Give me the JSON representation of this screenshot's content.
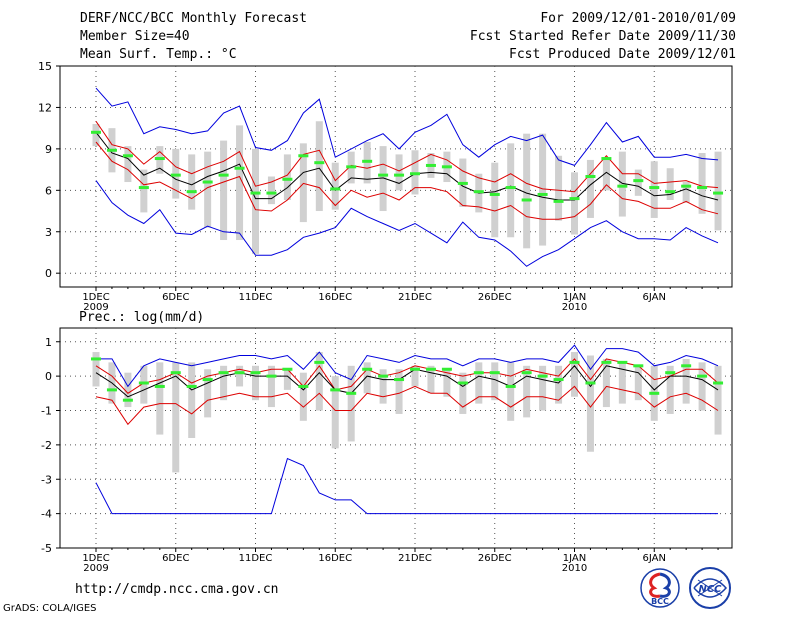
{
  "header": {
    "line1_left": "DERF/NCC/BCC Monthly Forecast",
    "line2_left": "Member Size=40",
    "line3_left": "Mean Surf. Temp.: °C",
    "line1_right": "For 2009/12/01-2010/01/09",
    "line2_right": "Fcst Started Refer Date 2009/11/30",
    "line3_right": "Fcst Produced Date 2009/12/01"
  },
  "footer": {
    "url": "http://cmdp.ncc.cma.gov.cn",
    "grads": "GrADS: COLA/IGES",
    "logo_bcc_text": "BCC",
    "logo_ncc_text": "NCC"
  },
  "colors": {
    "envelope": "#0000dd",
    "spread": "#dd0000",
    "mean": "#000000",
    "median": "#33ee33",
    "box": "#d0d0d0"
  },
  "chart_data": [
    {
      "type": "box-line",
      "title": "Mean Surf. Temp.: °C",
      "x_tick_labels": [
        "1DEC",
        "6DEC",
        "11DEC",
        "16DEC",
        "21DEC",
        "26DEC",
        "1JAN",
        "6JAN"
      ],
      "x_year_labels": [
        "2009",
        "",
        "",
        "",
        "",
        "",
        "2010",
        ""
      ],
      "yticks": [
        0,
        3,
        6,
        9,
        12,
        15
      ],
      "ylim": [
        -1,
        15
      ],
      "days": 40,
      "series": [
        {
          "name": "max",
          "values": [
            13.4,
            12.1,
            12.4,
            10.1,
            10.6,
            10.4,
            10.1,
            10.3,
            11.6,
            12.1,
            9.1,
            8.9,
            9.6,
            11.6,
            12.6,
            8.4,
            9.0,
            9.6,
            10.1,
            9.0,
            10.2,
            10.7,
            11.5,
            9.3,
            8.4,
            9.3,
            9.9,
            9.6,
            10.0,
            8.2,
            7.8,
            9.3,
            10.9,
            9.5,
            9.9,
            8.4,
            8.4,
            8.6,
            8.3,
            8.2
          ]
        },
        {
          "name": "upper",
          "values": [
            11.0,
            9.3,
            9.0,
            7.9,
            8.8,
            7.7,
            7.2,
            7.7,
            8.1,
            8.8,
            6.3,
            6.6,
            7.1,
            8.6,
            8.9,
            6.7,
            7.8,
            7.6,
            7.9,
            7.4,
            8.0,
            8.6,
            8.2,
            7.4,
            6.9,
            6.6,
            7.2,
            6.5,
            6.1,
            6.0,
            5.9,
            7.2,
            8.5,
            7.2,
            7.2,
            6.5,
            6.6,
            6.7,
            6.3,
            6.2
          ]
        },
        {
          "name": "mean",
          "values": [
            10.2,
            8.7,
            8.3,
            7.1,
            7.6,
            6.8,
            6.4,
            7.0,
            7.4,
            7.9,
            5.4,
            5.4,
            6.2,
            7.3,
            7.6,
            6.0,
            6.9,
            6.8,
            6.9,
            6.5,
            7.2,
            7.3,
            7.2,
            6.3,
            5.8,
            5.9,
            6.3,
            5.8,
            5.5,
            5.3,
            5.3,
            6.4,
            7.3,
            6.5,
            6.3,
            5.6,
            5.7,
            6.1,
            5.6,
            5.3
          ]
        },
        {
          "name": "lower",
          "values": [
            9.5,
            8.1,
            7.5,
            6.4,
            6.6,
            6.0,
            5.4,
            6.2,
            6.6,
            7.0,
            4.6,
            4.5,
            5.3,
            6.5,
            6.2,
            4.9,
            6.0,
            5.5,
            5.8,
            5.3,
            6.2,
            6.2,
            5.9,
            4.9,
            4.8,
            4.5,
            4.9,
            4.1,
            3.9,
            3.9,
            4.1,
            5.0,
            6.4,
            5.4,
            5.2,
            4.7,
            4.7,
            5.2,
            4.6,
            4.3
          ]
        },
        {
          "name": "min",
          "values": [
            6.7,
            5.1,
            4.2,
            3.6,
            4.6,
            2.9,
            2.8,
            3.4,
            3.0,
            2.9,
            1.3,
            1.3,
            1.7,
            2.6,
            2.9,
            3.3,
            4.7,
            4.1,
            3.6,
            3.1,
            3.6,
            2.9,
            2.2,
            3.7,
            2.6,
            2.4,
            1.6,
            0.5,
            1.2,
            1.7,
            2.5,
            3.3,
            3.8,
            3.0,
            2.5,
            2.5,
            2.4,
            3.3,
            2.7,
            2.2
          ]
        },
        {
          "name": "median",
          "values": [
            10.2,
            8.9,
            8.5,
            6.2,
            8.3,
            7.1,
            5.9,
            6.6,
            7.1,
            7.6,
            5.8,
            5.8,
            6.8,
            8.5,
            8.0,
            6.1,
            7.7,
            8.1,
            7.1,
            7.1,
            7.2,
            7.8,
            7.7,
            6.5,
            5.9,
            5.7,
            6.2,
            5.3,
            5.7,
            5.2,
            5.4,
            7.0,
            8.3,
            6.3,
            6.7,
            6.2,
            5.9,
            6.3,
            6.2,
            5.8
          ]
        },
        {
          "name": "box_top",
          "values": [
            10.8,
            10.5,
            9.2,
            7.5,
            9.2,
            9.0,
            8.6,
            8.8,
            9.6,
            10.7,
            9.0,
            7.0,
            8.6,
            9.4,
            11.0,
            8.0,
            8.8,
            9.5,
            9.2,
            8.6,
            8.9,
            8.7,
            8.8,
            8.3,
            7.2,
            8.0,
            9.4,
            10.1,
            10.1,
            8.5,
            7.3,
            8.2,
            8.3,
            8.8,
            7.5,
            8.1,
            7.6,
            6.6,
            8.7,
            8.8
          ]
        },
        {
          "name": "box_bottom",
          "values": [
            9.2,
            7.3,
            6.6,
            4.4,
            7.2,
            5.4,
            4.6,
            3.3,
            2.4,
            2.4,
            1.4,
            5.0,
            5.3,
            3.7,
            4.5,
            4.6,
            6.5,
            6.5,
            4.5,
            6.0,
            5.7,
            6.9,
            6.6,
            4.8,
            4.4,
            2.6,
            2.6,
            1.8,
            2.0,
            3.8,
            2.8,
            4.0,
            6.0,
            4.1,
            5.6,
            4.0,
            5.3,
            5.1,
            4.3,
            3.1
          ]
        }
      ]
    },
    {
      "type": "box-line",
      "title": "Prec.: log(mm/d)",
      "x_tick_labels": [
        "1DEC",
        "6DEC",
        "11DEC",
        "16DEC",
        "21DEC",
        "26DEC",
        "1JAN",
        "6JAN"
      ],
      "x_year_labels": [
        "2009",
        "",
        "",
        "",
        "",
        "",
        "2010",
        ""
      ],
      "yticks": [
        -5,
        -4,
        -3,
        -2,
        -1,
        0,
        1
      ],
      "ylim": [
        -5,
        1.4
      ],
      "days": 40,
      "series": [
        {
          "name": "max",
          "values": [
            0.5,
            0.5,
            -0.3,
            0.3,
            0.5,
            0.4,
            0.3,
            0.4,
            0.5,
            0.6,
            0.6,
            0.5,
            0.6,
            0.2,
            0.7,
            0.1,
            -0.1,
            0.6,
            0.5,
            0.4,
            0.6,
            0.5,
            0.5,
            0.3,
            0.5,
            0.5,
            0.4,
            0.5,
            0.5,
            0.4,
            0.9,
            0.2,
            0.8,
            0.8,
            0.7,
            0.3,
            0.4,
            0.6,
            0.5,
            0.3
          ]
        },
        {
          "name": "upper",
          "values": [
            0.3,
            0.0,
            -0.5,
            -0.2,
            -0.1,
            0.1,
            -0.2,
            0.0,
            0.1,
            0.2,
            0.1,
            0.2,
            0.2,
            -0.3,
            0.3,
            -0.4,
            -0.3,
            0.2,
            0.0,
            0.1,
            0.3,
            0.2,
            0.1,
            0.0,
            0.1,
            0.1,
            0.0,
            0.2,
            0.1,
            0.0,
            0.5,
            -0.1,
            0.5,
            0.4,
            0.3,
            -0.1,
            0.0,
            0.2,
            0.2,
            -0.2
          ]
        },
        {
          "name": "mean",
          "values": [
            0.1,
            -0.2,
            -0.6,
            -0.4,
            -0.2,
            0.0,
            -0.4,
            -0.2,
            0.0,
            0.1,
            0.0,
            0.0,
            0.0,
            -0.4,
            0.1,
            -0.4,
            -0.5,
            0.0,
            -0.1,
            -0.1,
            0.2,
            0.1,
            0.0,
            -0.3,
            0.0,
            -0.1,
            -0.3,
            0.0,
            -0.1,
            -0.2,
            0.3,
            -0.3,
            0.3,
            0.2,
            0.1,
            -0.4,
            0.0,
            0.0,
            -0.1,
            -0.4
          ]
        },
        {
          "name": "lower",
          "values": [
            -0.6,
            -0.7,
            -1.4,
            -0.9,
            -0.8,
            -0.8,
            -1.1,
            -0.7,
            -0.6,
            -0.5,
            -0.6,
            -0.6,
            -0.5,
            -0.9,
            -0.5,
            -1.0,
            -1.0,
            -0.5,
            -0.6,
            -0.5,
            -0.3,
            -0.5,
            -0.5,
            -0.9,
            -0.6,
            -0.6,
            -0.9,
            -0.6,
            -0.6,
            -0.7,
            -0.3,
            -0.9,
            -0.3,
            -0.4,
            -0.5,
            -0.9,
            -0.6,
            -0.5,
            -0.7,
            -1.0
          ]
        },
        {
          "name": "min",
          "values": [
            -3.1,
            -4.0,
            -4.0,
            -4.0,
            -4.0,
            -4.0,
            -4.0,
            -4.0,
            -4.0,
            -4.0,
            -4.0,
            -4.0,
            -2.4,
            -2.6,
            -3.4,
            -3.6,
            -3.6,
            -4.0,
            -4.0,
            -4.0,
            -4.0,
            -4.0,
            -4.0,
            -4.0,
            -4.0,
            -4.0,
            -4.0,
            -4.0,
            -4.0,
            -4.0,
            -4.0,
            -4.0,
            -4.0,
            -4.0,
            -4.0,
            -4.0,
            -4.0,
            -4.0,
            -4.0,
            -4.0
          ]
        },
        {
          "name": "median",
          "values": [
            0.5,
            -0.4,
            -0.7,
            -0.2,
            -0.3,
            0.1,
            -0.3,
            -0.1,
            0.1,
            0.1,
            0.1,
            0.0,
            0.2,
            -0.3,
            0.4,
            -0.4,
            -0.5,
            0.2,
            0.0,
            -0.1,
            0.2,
            0.2,
            0.2,
            -0.2,
            0.1,
            0.1,
            -0.3,
            0.1,
            0.0,
            -0.1,
            0.4,
            -0.2,
            0.4,
            0.4,
            0.3,
            -0.5,
            0.1,
            0.3,
            0.0,
            -0.2
          ]
        },
        {
          "name": "box_top",
          "values": [
            0.7,
            0.4,
            0.1,
            0.3,
            0.4,
            0.4,
            0.4,
            0.2,
            0.3,
            0.3,
            0.3,
            0.3,
            0.2,
            0.1,
            0.7,
            0.0,
            0.3,
            0.4,
            0.2,
            0.2,
            0.3,
            0.3,
            0.2,
            0.1,
            0.4,
            0.4,
            0.4,
            0.3,
            0.3,
            0.3,
            0.7,
            0.6,
            0.5,
            0.4,
            0.3,
            0.3,
            0.3,
            0.5,
            0.4,
            0.3
          ]
        },
        {
          "name": "box_bottom",
          "values": [
            -0.3,
            -0.8,
            -0.9,
            -0.8,
            -1.7,
            -2.8,
            -1.8,
            -1.2,
            -0.7,
            -0.3,
            -0.7,
            -0.9,
            -0.4,
            -1.3,
            -1.0,
            -2.1,
            -1.9,
            -0.5,
            -0.8,
            -1.1,
            -0.3,
            -0.5,
            -0.6,
            -1.1,
            -0.8,
            -0.7,
            -1.3,
            -1.2,
            -1.0,
            -0.8,
            -0.6,
            -2.2,
            -0.9,
            -0.8,
            -0.7,
            -1.3,
            -1.1,
            -0.8,
            -1.0,
            -1.7
          ]
        }
      ]
    }
  ],
  "lower_title": "Prec.: log(mm/d)"
}
